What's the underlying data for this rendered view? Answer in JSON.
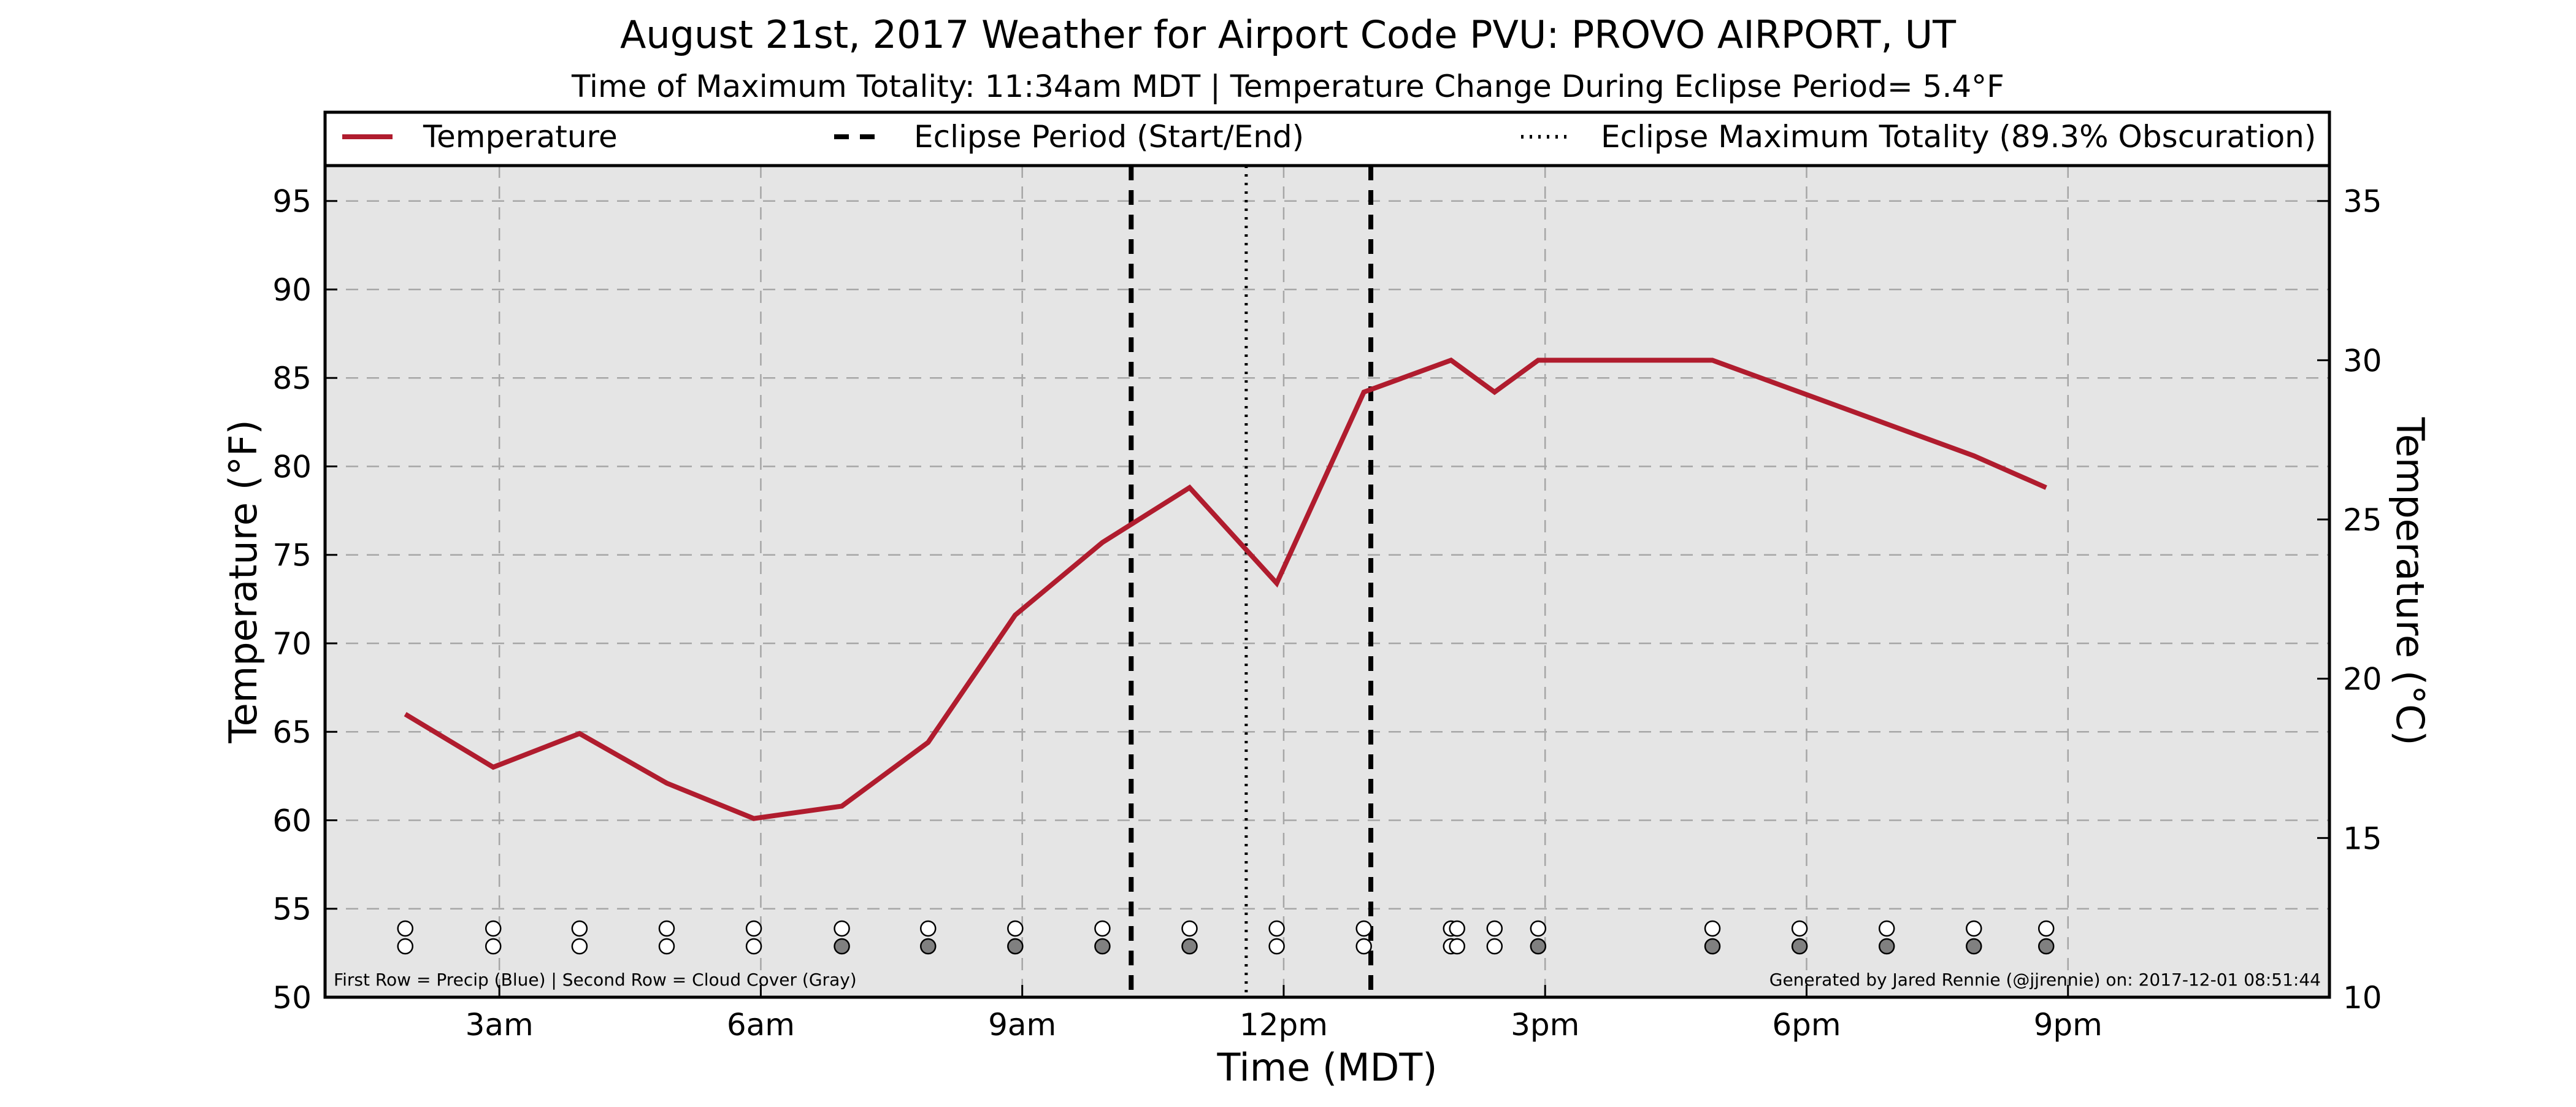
{
  "colors": {
    "background": "#ffffff",
    "plot_background": "#e5e5e5",
    "temperature_line": "#b01c2e",
    "grid": "#a6a6a6",
    "cloud_cover_fill": "#808080",
    "precip_fill": "#ffffff"
  },
  "chart_data": {
    "type": "line",
    "title": "August 21st, 2017 Weather for Airport Code PVU: PROVO AIRPORT, UT",
    "subtitle": "Time of Maximum Totality: 11:34am MDT | Temperature Change During Eclipse Period= 5.4°F",
    "xlabel": "Time (MDT)",
    "ylabel": "Temperature (°F)",
    "ylabel_right": "Temperature (°C)",
    "xlim": [
      1.0,
      24.0
    ],
    "ylim": [
      50,
      97
    ],
    "ylim_right": [
      10.0,
      36.111
    ],
    "xticks": [
      {
        "value": 3,
        "label": "3am"
      },
      {
        "value": 6,
        "label": "6am"
      },
      {
        "value": 9,
        "label": "9am"
      },
      {
        "value": 12,
        "label": "12pm"
      },
      {
        "value": 15,
        "label": "3pm"
      },
      {
        "value": 18,
        "label": "6pm"
      },
      {
        "value": 21,
        "label": "9pm"
      }
    ],
    "yticks": [
      50,
      55,
      60,
      65,
      70,
      75,
      80,
      85,
      90,
      95
    ],
    "yticks_right": [
      10,
      15,
      20,
      25,
      30,
      35
    ],
    "grid": true,
    "legend_position": "top",
    "legend": [
      {
        "label": "Temperature",
        "style": "solid"
      },
      {
        "label": "Eclipse Period (Start/End)",
        "style": "dashed"
      },
      {
        "label": "Eclipse Maximum Totality (89.3% Obscuration)",
        "style": "dotted"
      }
    ],
    "series": [
      {
        "name": "Temperature",
        "x": [
          1.92,
          2.93,
          3.92,
          4.92,
          5.92,
          6.93,
          7.92,
          8.92,
          9.92,
          10.92,
          11.92,
          12.92,
          13.92,
          14.42,
          14.92,
          15.92,
          16.92,
          17.92,
          18.92,
          19.92,
          20.75
        ],
        "y": [
          66.0,
          63.0,
          64.9,
          62.1,
          60.1,
          60.8,
          64.4,
          71.6,
          75.7,
          78.8,
          73.4,
          84.2,
          86.0,
          84.2,
          86.0,
          86.0,
          86.0,
          84.2,
          82.4,
          80.6,
          78.8
        ]
      }
    ],
    "eclipse_start": 10.25,
    "eclipse_end": 13.0,
    "eclipse_max": 11.57,
    "markers": {
      "times": [
        1.92,
        2.93,
        3.92,
        4.92,
        5.92,
        6.93,
        7.92,
        8.92,
        9.92,
        10.92,
        11.92,
        12.92,
        13.92,
        13.99,
        14.42,
        14.92,
        16.92,
        17.92,
        18.92,
        19.92,
        20.75
      ],
      "precip": [
        0,
        0,
        0,
        0,
        0,
        0,
        0,
        0,
        0,
        0,
        0,
        0,
        0,
        0,
        0,
        0,
        0,
        0,
        0,
        0,
        0
      ],
      "cloud_cover": [
        0,
        0,
        0,
        0,
        0,
        1,
        1,
        1,
        1,
        1,
        0,
        0,
        0,
        0,
        0,
        1,
        1,
        1,
        1,
        1,
        1
      ]
    },
    "footnote_left": "First Row = Precip (Blue) | Second Row = Cloud Cover (Gray)",
    "footnote_right": "Generated by Jared Rennie (@jjrennie) on: 2017-12-01 08:51:44"
  }
}
